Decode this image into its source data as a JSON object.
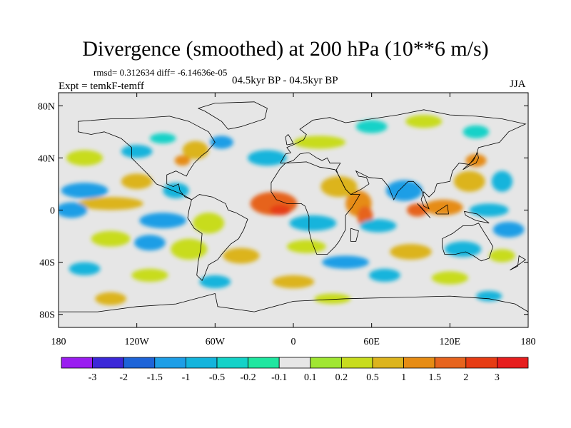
{
  "title": "Divergence (smoothed) at 200 hPa (10**6 m/s)",
  "stats": "rmsd= 0.312634 diff= -6.14636e-05",
  "experiment": "Expt = temkF-temff",
  "period": "04.5kyr BP - 04.5kyr BP",
  "season": "JJA",
  "map": {
    "projection": "cylindrical equidistant",
    "lon_range": [
      -180,
      180
    ],
    "lat_range": [
      -90,
      90
    ],
    "background_color": "#e6e6e6",
    "coast_color": "#000000",
    "y_ticks": [
      {
        "label": "80N",
        "lat": 80
      },
      {
        "label": "40N",
        "lat": 40
      },
      {
        "label": "0",
        "lat": 0
      },
      {
        "label": "40S",
        "lat": -40
      },
      {
        "label": "80S",
        "lat": -80
      }
    ],
    "x_ticks": [
      {
        "label": "180",
        "lon": -180
      },
      {
        "label": "120W",
        "lon": -120
      },
      {
        "label": "60W",
        "lon": -60
      },
      {
        "label": "0",
        "lon": 0
      },
      {
        "label": "60E",
        "lon": 60
      },
      {
        "label": "120E",
        "lon": 120
      },
      {
        "label": "180",
        "lon": 180
      }
    ]
  },
  "colorbar": {
    "boundary_labels": [
      "-3",
      "-2",
      "-1.5",
      "-1",
      "-0.5",
      "-0.2",
      "-0.1",
      "0.1",
      "0.2",
      "0.5",
      "1",
      "1.5",
      "2",
      "3"
    ],
    "colors": [
      "#9a1df0",
      "#3c28d8",
      "#1e64d8",
      "#1e9ee6",
      "#14b4dc",
      "#14d2c8",
      "#20e6a0",
      "#e6e6e6",
      "#a0e632",
      "#c8dc1e",
      "#dcb41e",
      "#e68c14",
      "#e6641e",
      "#e63c14",
      "#e61e1e"
    ]
  },
  "field_blobs": [
    {
      "lon": -75,
      "lat": 46,
      "rx": 10,
      "ry": 7,
      "c": 10
    },
    {
      "lon": -85,
      "lat": 38,
      "rx": 6,
      "ry": 4,
      "c": 11
    },
    {
      "lon": -55,
      "lat": 52,
      "rx": 9,
      "ry": 5,
      "c": 3
    },
    {
      "lon": -160,
      "lat": 40,
      "rx": 14,
      "ry": 6,
      "c": 9
    },
    {
      "lon": -120,
      "lat": 45,
      "rx": 12,
      "ry": 5,
      "c": 4
    },
    {
      "lon": -100,
      "lat": 55,
      "rx": 10,
      "ry": 4,
      "c": 5
    },
    {
      "lon": -20,
      "lat": 40,
      "rx": 15,
      "ry": 6,
      "c": 4
    },
    {
      "lon": 20,
      "lat": 52,
      "rx": 20,
      "ry": 5,
      "c": 9
    },
    {
      "lon": 60,
      "lat": 64,
      "rx": 12,
      "ry": 5,
      "c": 5
    },
    {
      "lon": 100,
      "lat": 68,
      "rx": 14,
      "ry": 5,
      "c": 9
    },
    {
      "lon": 140,
      "lat": 60,
      "rx": 10,
      "ry": 5,
      "c": 5
    },
    {
      "lon": 140,
      "lat": 38,
      "rx": 8,
      "ry": 5,
      "c": 11
    },
    {
      "lon": 135,
      "lat": 22,
      "rx": 12,
      "ry": 8,
      "c": 10
    },
    {
      "lon": 160,
      "lat": 22,
      "rx": 8,
      "ry": 8,
      "c": 4
    },
    {
      "lon": -160,
      "lat": 15,
      "rx": 18,
      "ry": 6,
      "c": 3
    },
    {
      "lon": -120,
      "lat": 22,
      "rx": 12,
      "ry": 6,
      "c": 10
    },
    {
      "lon": -90,
      "lat": 15,
      "rx": 10,
      "ry": 6,
      "c": 4
    },
    {
      "lon": -140,
      "lat": 5,
      "rx": 25,
      "ry": 5,
      "c": 10
    },
    {
      "lon": -170,
      "lat": 0,
      "rx": 12,
      "ry": 6,
      "c": 3
    },
    {
      "lon": -100,
      "lat": -8,
      "rx": 18,
      "ry": 6,
      "c": 3
    },
    {
      "lon": -65,
      "lat": -10,
      "rx": 12,
      "ry": 8,
      "c": 9
    },
    {
      "lon": -15,
      "lat": 5,
      "rx": 18,
      "ry": 9,
      "c": 12
    },
    {
      "lon": -10,
      "lat": 0,
      "rx": 8,
      "ry": 4,
      "c": 13
    },
    {
      "lon": 15,
      "lat": -10,
      "rx": 18,
      "ry": 6,
      "c": 4
    },
    {
      "lon": 50,
      "lat": 5,
      "rx": 10,
      "ry": 10,
      "c": 11
    },
    {
      "lon": 55,
      "lat": -5,
      "rx": 6,
      "ry": 8,
      "c": 12
    },
    {
      "lon": 65,
      "lat": -12,
      "rx": 14,
      "ry": 5,
      "c": 4
    },
    {
      "lon": 35,
      "lat": 18,
      "rx": 14,
      "ry": 8,
      "c": 10
    },
    {
      "lon": 85,
      "lat": 15,
      "rx": 14,
      "ry": 8,
      "c": 3
    },
    {
      "lon": 115,
      "lat": 2,
      "rx": 15,
      "ry": 6,
      "c": 11
    },
    {
      "lon": 95,
      "lat": 0,
      "rx": 8,
      "ry": 5,
      "c": 12
    },
    {
      "lon": 150,
      "lat": 0,
      "rx": 15,
      "ry": 5,
      "c": 4
    },
    {
      "lon": 165,
      "lat": -15,
      "rx": 12,
      "ry": 6,
      "c": 3
    },
    {
      "lon": -140,
      "lat": -22,
      "rx": 15,
      "ry": 6,
      "c": 9
    },
    {
      "lon": -110,
      "lat": -25,
      "rx": 12,
      "ry": 6,
      "c": 3
    },
    {
      "lon": -80,
      "lat": -30,
      "rx": 14,
      "ry": 8,
      "c": 9
    },
    {
      "lon": -40,
      "lat": -35,
      "rx": 14,
      "ry": 6,
      "c": 10
    },
    {
      "lon": 10,
      "lat": -28,
      "rx": 15,
      "ry": 5,
      "c": 9
    },
    {
      "lon": 40,
      "lat": -40,
      "rx": 18,
      "ry": 5,
      "c": 3
    },
    {
      "lon": 90,
      "lat": -32,
      "rx": 16,
      "ry": 6,
      "c": 10
    },
    {
      "lon": 130,
      "lat": -30,
      "rx": 14,
      "ry": 6,
      "c": 4
    },
    {
      "lon": 160,
      "lat": -35,
      "rx": 10,
      "ry": 5,
      "c": 9
    },
    {
      "lon": -160,
      "lat": -45,
      "rx": 12,
      "ry": 5,
      "c": 4
    },
    {
      "lon": -110,
      "lat": -50,
      "rx": 14,
      "ry": 5,
      "c": 9
    },
    {
      "lon": -60,
      "lat": -55,
      "rx": 12,
      "ry": 5,
      "c": 4
    },
    {
      "lon": 0,
      "lat": -55,
      "rx": 16,
      "ry": 5,
      "c": 10
    },
    {
      "lon": 70,
      "lat": -50,
      "rx": 12,
      "ry": 5,
      "c": 4
    },
    {
      "lon": 120,
      "lat": -52,
      "rx": 14,
      "ry": 5,
      "c": 9
    },
    {
      "lon": -140,
      "lat": -68,
      "rx": 12,
      "ry": 5,
      "c": 10
    },
    {
      "lon": 30,
      "lat": -68,
      "rx": 14,
      "ry": 4,
      "c": 9
    },
    {
      "lon": 150,
      "lat": -66,
      "rx": 10,
      "ry": 4,
      "c": 4
    }
  ],
  "coastlines": [
    [
      [
        -165,
        68
      ],
      [
        -140,
        70
      ],
      [
        -125,
        70
      ],
      [
        -95,
        72
      ],
      [
        -80,
        68
      ],
      [
        -65,
        60
      ],
      [
        -60,
        52
      ],
      [
        -66,
        45
      ],
      [
        -70,
        42
      ],
      [
        -76,
        36
      ],
      [
        -80,
        30
      ],
      [
        -82,
        26
      ],
      [
        -90,
        30
      ],
      [
        -97,
        27
      ],
      [
        -97,
        20
      ],
      [
        -92,
        18
      ],
      [
        -88,
        20
      ],
      [
        -87,
        15
      ],
      [
        -83,
        10
      ],
      [
        -78,
        8
      ],
      [
        -85,
        12
      ],
      [
        -95,
        16
      ],
      [
        -105,
        20
      ],
      [
        -112,
        28
      ],
      [
        -118,
        34
      ],
      [
        -124,
        40
      ],
      [
        -124,
        48
      ],
      [
        -132,
        55
      ],
      [
        -145,
        60
      ],
      [
        -155,
        58
      ],
      [
        -165,
        60
      ],
      [
        -165,
        68
      ]
    ],
    [
      [
        -78,
        8
      ],
      [
        -72,
        12
      ],
      [
        -62,
        10
      ],
      [
        -52,
        5
      ],
      [
        -50,
        0
      ],
      [
        -44,
        -2
      ],
      [
        -35,
        -7
      ],
      [
        -38,
        -15
      ],
      [
        -42,
        -22
      ],
      [
        -48,
        -26
      ],
      [
        -55,
        -34
      ],
      [
        -58,
        -38
      ],
      [
        -65,
        -42
      ],
      [
        -68,
        -50
      ],
      [
        -70,
        -54
      ],
      [
        -74,
        -50
      ],
      [
        -73,
        -40
      ],
      [
        -71,
        -30
      ],
      [
        -70,
        -18
      ],
      [
        -76,
        -14
      ],
      [
        -81,
        -6
      ],
      [
        -80,
        0
      ],
      [
        -78,
        8
      ]
    ],
    [
      [
        -10,
        36
      ],
      [
        -6,
        43
      ],
      [
        -2,
        44
      ],
      [
        -5,
        48
      ],
      [
        2,
        51
      ],
      [
        8,
        54
      ],
      [
        10,
        58
      ],
      [
        5,
        62
      ],
      [
        15,
        69
      ],
      [
        28,
        71
      ],
      [
        40,
        67
      ],
      [
        60,
        70
      ],
      [
        80,
        73
      ],
      [
        100,
        77
      ],
      [
        120,
        73
      ],
      [
        140,
        72
      ],
      [
        160,
        70
      ],
      [
        178,
        66
      ],
      [
        165,
        60
      ],
      [
        158,
        52
      ],
      [
        142,
        48
      ],
      [
        140,
        42
      ],
      [
        135,
        35
      ],
      [
        127,
        36
      ],
      [
        122,
        30
      ],
      [
        120,
        22
      ],
      [
        110,
        20
      ],
      [
        108,
        14
      ],
      [
        104,
        10
      ],
      [
        100,
        14
      ],
      [
        98,
        8
      ],
      [
        100,
        3
      ],
      [
        104,
        1
      ],
      [
        98,
        16
      ],
      [
        92,
        22
      ],
      [
        88,
        22
      ],
      [
        80,
        14
      ],
      [
        77,
        8
      ],
      [
        73,
        18
      ],
      [
        68,
        24
      ],
      [
        58,
        25
      ],
      [
        52,
        28
      ],
      [
        48,
        30
      ],
      [
        50,
        26
      ],
      [
        56,
        25
      ],
      [
        58,
        20
      ],
      [
        52,
        16
      ],
      [
        44,
        12
      ],
      [
        40,
        16
      ],
      [
        34,
        28
      ],
      [
        33,
        31
      ],
      [
        36,
        36
      ],
      [
        28,
        36
      ],
      [
        26,
        40
      ],
      [
        22,
        38
      ],
      [
        18,
        40
      ],
      [
        12,
        44
      ],
      [
        10,
        44
      ],
      [
        5,
        43
      ],
      [
        0,
        38
      ],
      [
        -6,
        36
      ],
      [
        -10,
        36
      ]
    ],
    [
      [
        -17,
        21
      ],
      [
        -10,
        32
      ],
      [
        -6,
        36
      ],
      [
        10,
        37
      ],
      [
        20,
        33
      ],
      [
        32,
        31
      ],
      [
        34,
        28
      ],
      [
        40,
        16
      ],
      [
        44,
        12
      ],
      [
        51,
        12
      ],
      [
        45,
        2
      ],
      [
        40,
        -4
      ],
      [
        40,
        -15
      ],
      [
        35,
        -24
      ],
      [
        32,
        -28
      ],
      [
        26,
        -34
      ],
      [
        18,
        -34
      ],
      [
        14,
        -24
      ],
      [
        12,
        -16
      ],
      [
        12,
        -5
      ],
      [
        9,
        3
      ],
      [
        6,
        5
      ],
      [
        -5,
        5
      ],
      [
        -13,
        8
      ],
      [
        -17,
        14
      ],
      [
        -17,
        21
      ]
    ],
    [
      [
        114,
        -22
      ],
      [
        122,
        -18
      ],
      [
        130,
        -12
      ],
      [
        137,
        -12
      ],
      [
        142,
        -10
      ],
      [
        145,
        -15
      ],
      [
        150,
        -23
      ],
      [
        153,
        -28
      ],
      [
        150,
        -37
      ],
      [
        144,
        -39
      ],
      [
        138,
        -35
      ],
      [
        132,
        -32
      ],
      [
        124,
        -34
      ],
      [
        116,
        -34
      ],
      [
        114,
        -28
      ],
      [
        114,
        -22
      ]
    ],
    [
      [
        44,
        -14
      ],
      [
        50,
        -16
      ],
      [
        48,
        -24
      ],
      [
        44,
        -24
      ],
      [
        44,
        -14
      ]
    ],
    [
      [
        -5,
        50
      ],
      [
        0,
        51
      ],
      [
        -2,
        55
      ],
      [
        -4,
        58
      ],
      [
        -6,
        56
      ],
      [
        -5,
        50
      ]
    ],
    [
      [
        130,
        31
      ],
      [
        135,
        34
      ],
      [
        140,
        36
      ],
      [
        142,
        40
      ],
      [
        141,
        44
      ],
      [
        138,
        38
      ],
      [
        132,
        33
      ],
      [
        130,
        31
      ]
    ],
    [
      [
        95,
        5
      ],
      [
        105,
        -6
      ],
      [
        98,
        2
      ],
      [
        95,
        5
      ]
    ],
    [
      [
        109,
        -2
      ],
      [
        118,
        4
      ],
      [
        119,
        -3
      ],
      [
        110,
        -3
      ],
      [
        109,
        -2
      ]
    ],
    [
      [
        131,
        -1
      ],
      [
        141,
        -3
      ],
      [
        150,
        -10
      ],
      [
        140,
        -8
      ],
      [
        132,
        -4
      ],
      [
        131,
        -1
      ]
    ],
    [
      [
        -180,
        -78
      ],
      [
        -150,
        -78
      ],
      [
        -120,
        -74
      ],
      [
        -90,
        -72
      ],
      [
        -60,
        -64
      ],
      [
        -58,
        -74
      ],
      [
        -30,
        -78
      ],
      [
        0,
        -70
      ],
      [
        40,
        -68
      ],
      [
        80,
        -67
      ],
      [
        120,
        -66
      ],
      [
        150,
        -68
      ],
      [
        170,
        -72
      ],
      [
        180,
        -78
      ]
    ],
    [
      [
        -73,
        78
      ],
      [
        -60,
        82
      ],
      [
        -30,
        83
      ],
      [
        -20,
        78
      ],
      [
        -22,
        70
      ],
      [
        -40,
        64
      ],
      [
        -50,
        62
      ],
      [
        -55,
        68
      ],
      [
        -68,
        76
      ],
      [
        -73,
        78
      ]
    ],
    [
      [
        166,
        -46
      ],
      [
        174,
        -41
      ],
      [
        178,
        -38
      ],
      [
        173,
        -35
      ],
      [
        172,
        -43
      ],
      [
        166,
        -46
      ]
    ]
  ]
}
